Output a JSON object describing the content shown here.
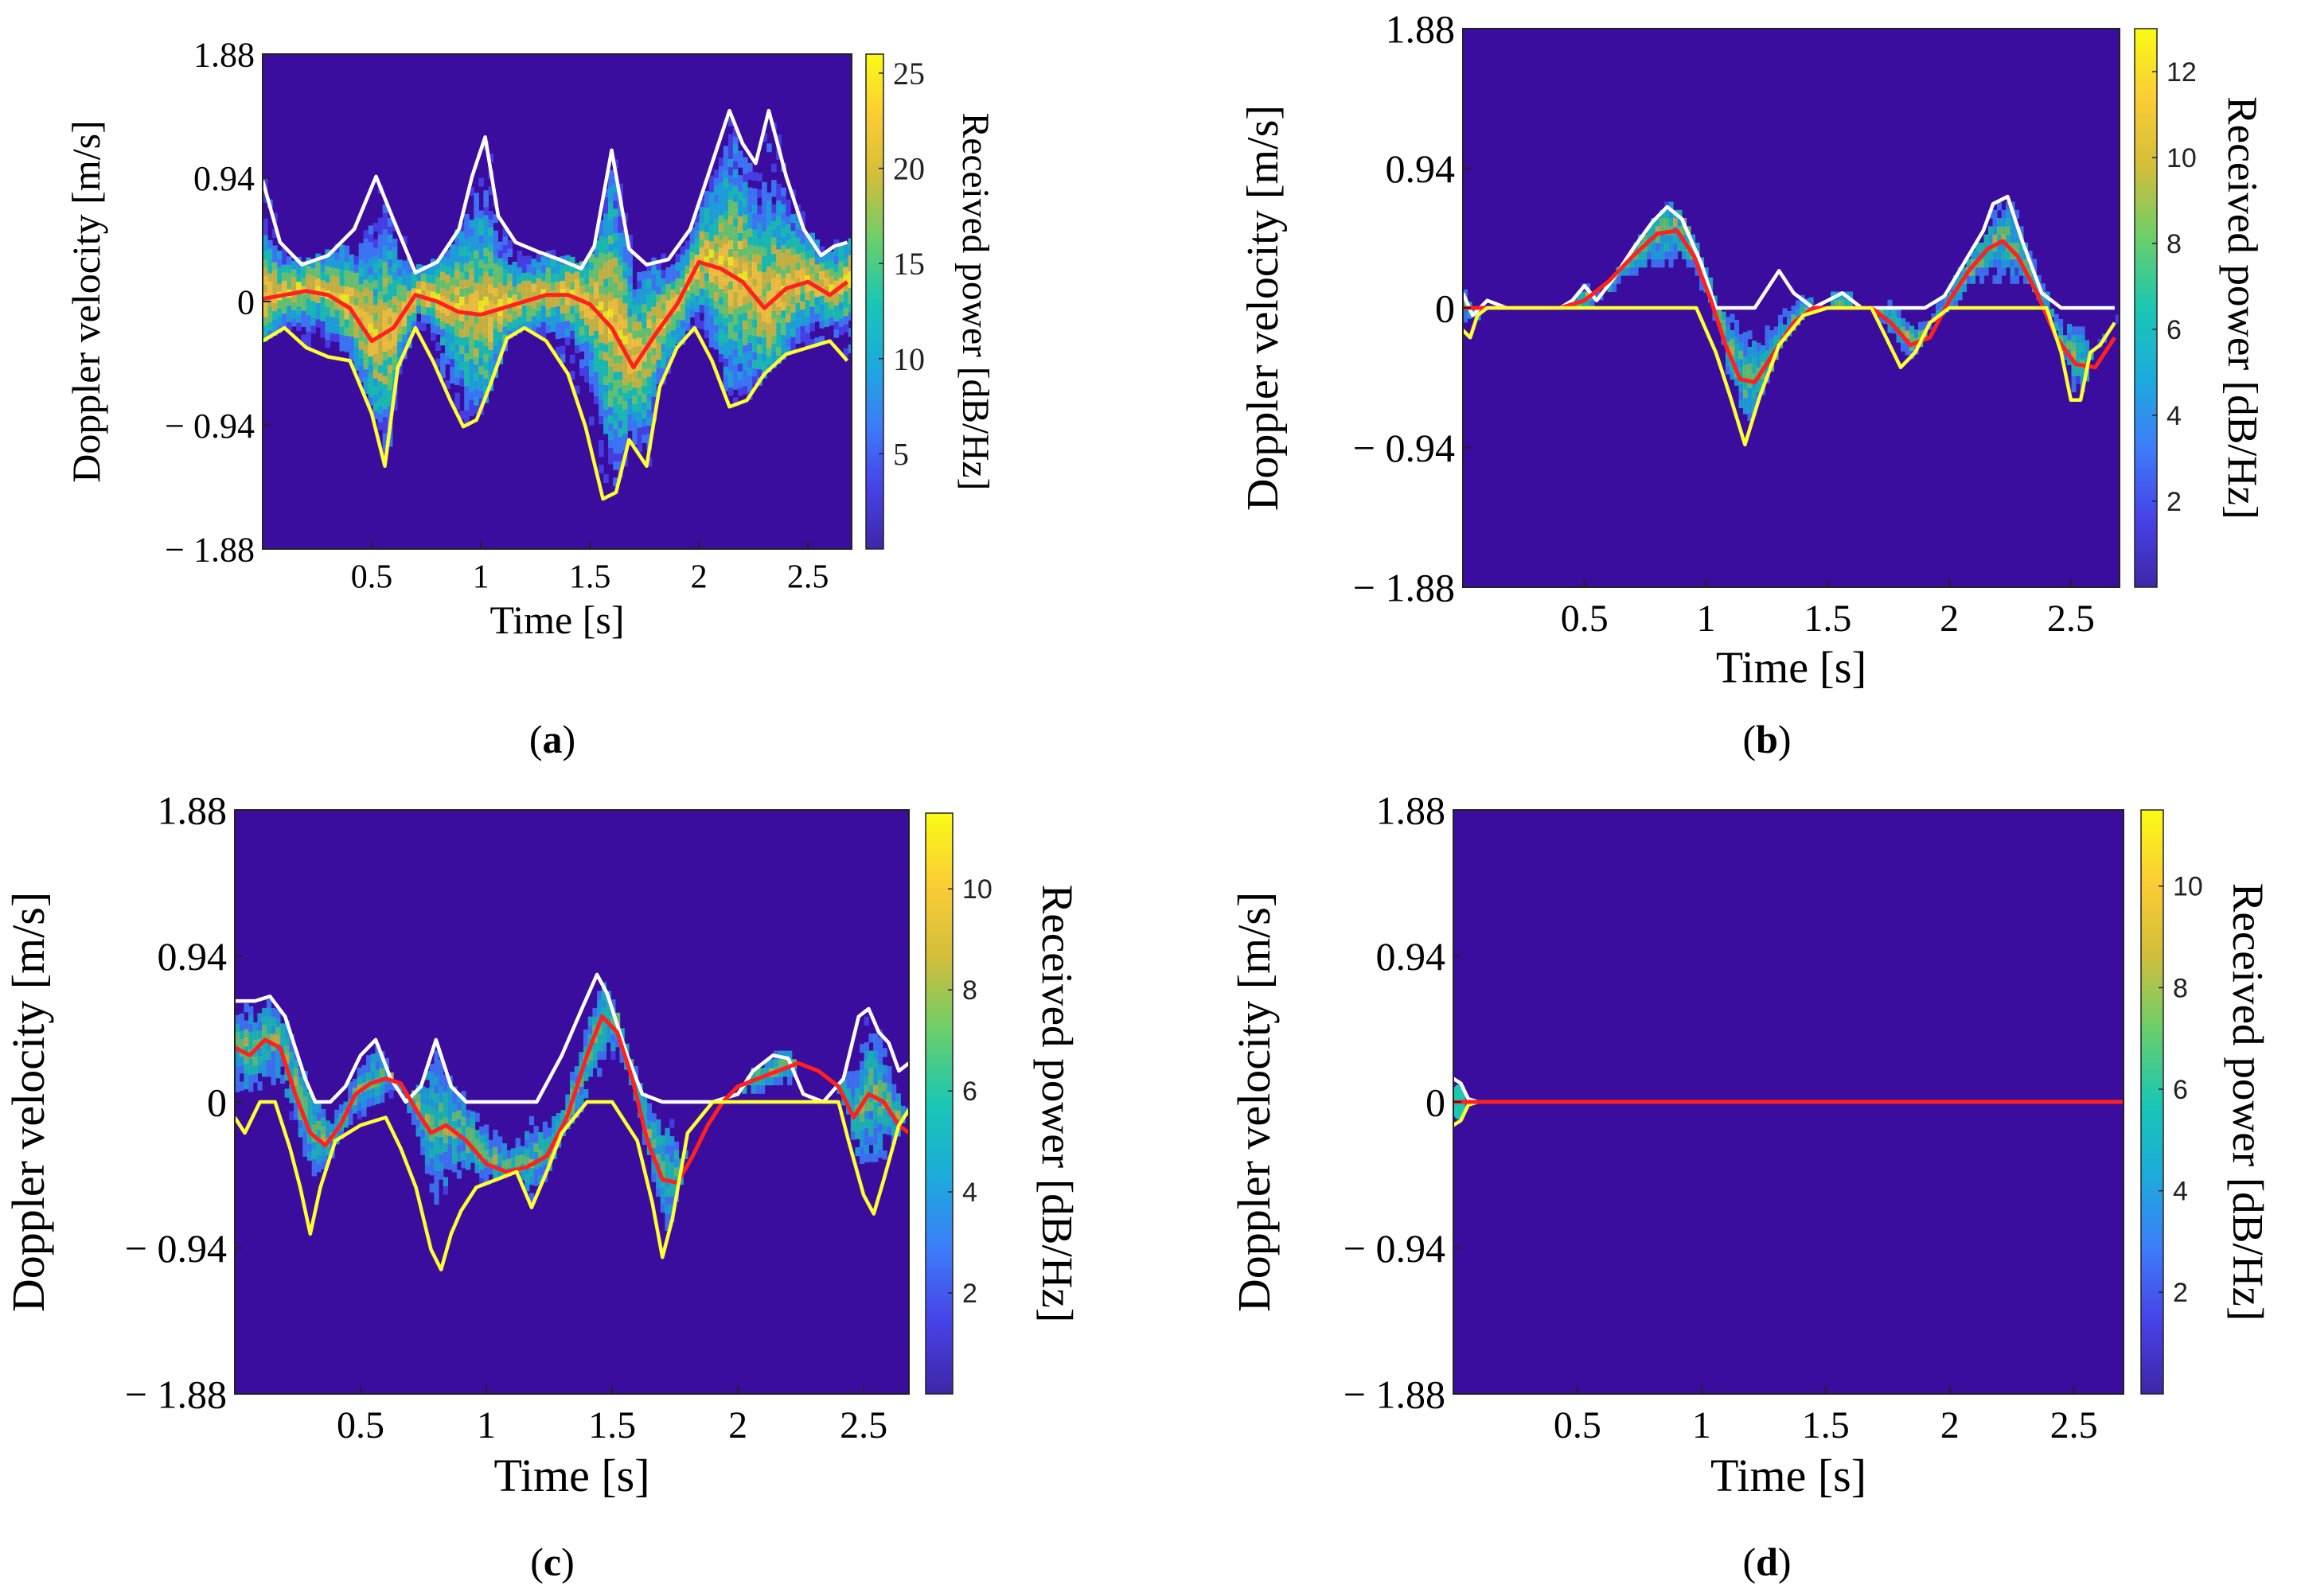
{
  "figure": {
    "panels": [
      "a",
      "b",
      "c",
      "d"
    ]
  },
  "colors": {
    "background": "#3a0d9e",
    "upper_envelope": "#ffffff",
    "lower_envelope": "#ffff33",
    "mean_velocity": "#ff2020",
    "colormap": [
      "#3e26a8",
      "#4743e8",
      "#3d7df9",
      "#1cabdc",
      "#1ac7b3",
      "#6acf6a",
      "#d1be3b",
      "#fbcc35",
      "#f9fb15"
    ]
  },
  "chart_data": [
    {
      "panel": "a",
      "caption": "(a)",
      "type": "heatmap",
      "xlabel": "Time [s]",
      "ylabel": "Doppler velocity [m/s]",
      "colorbar_label": "Received power [dB/Hz]",
      "xlim": [
        0,
        2.7
      ],
      "ylim": [
        -1.88,
        1.88
      ],
      "xticks": [
        0.5,
        1,
        1.5,
        2,
        2.5
      ],
      "xtick_labels": [
        "0.5",
        "1",
        "1.5",
        "2",
        "2.5"
      ],
      "yticks": [
        1.88,
        0.94,
        0,
        -0.94,
        -1.88
      ],
      "ytick_labels": [
        "1.88",
        "0.94",
        "0",
        "− 0.94",
        "− 1.88"
      ],
      "clim": [
        0,
        26
      ],
      "cticks": [
        5,
        10,
        15,
        20,
        25
      ],
      "ctick_labels": [
        "5",
        "10",
        "15",
        "20",
        "25"
      ],
      "spread": "wide",
      "series": [
        {
          "name": "upper envelope",
          "color": "#ffffff",
          "x": [
            0.0,
            0.08,
            0.18,
            0.3,
            0.42,
            0.52,
            0.6,
            0.7,
            0.8,
            0.9,
            0.96,
            1.02,
            1.08,
            1.16,
            1.26,
            1.36,
            1.46,
            1.52,
            1.6,
            1.68,
            1.76,
            1.86,
            1.96,
            2.06,
            2.14,
            2.2,
            2.26,
            2.32,
            2.4,
            2.48,
            2.56,
            2.62,
            2.68
          ],
          "y": [
            0.92,
            0.45,
            0.28,
            0.35,
            0.55,
            0.95,
            0.62,
            0.22,
            0.3,
            0.55,
            0.95,
            1.25,
            0.65,
            0.45,
            0.38,
            0.32,
            0.25,
            0.42,
            1.15,
            0.4,
            0.28,
            0.32,
            0.55,
            1.05,
            1.45,
            1.2,
            1.05,
            1.45,
            0.95,
            0.55,
            0.35,
            0.42,
            0.45
          ]
        },
        {
          "name": "mean velocity",
          "color": "#ff2020",
          "x": [
            0.0,
            0.1,
            0.2,
            0.3,
            0.4,
            0.5,
            0.6,
            0.7,
            0.8,
            0.9,
            1.0,
            1.1,
            1.2,
            1.3,
            1.4,
            1.5,
            1.6,
            1.7,
            1.8,
            1.9,
            2.0,
            2.1,
            2.2,
            2.3,
            2.4,
            2.5,
            2.6,
            2.68
          ],
          "y": [
            0.02,
            0.05,
            0.08,
            0.05,
            -0.05,
            -0.3,
            -0.2,
            0.05,
            0.0,
            -0.08,
            -0.1,
            -0.05,
            0.0,
            0.05,
            0.05,
            -0.02,
            -0.2,
            -0.5,
            -0.25,
            -0.02,
            0.3,
            0.25,
            0.15,
            -0.05,
            0.1,
            0.15,
            0.05,
            0.15
          ]
        },
        {
          "name": "lower envelope",
          "color": "#ffff33",
          "x": [
            0.0,
            0.1,
            0.2,
            0.3,
            0.4,
            0.5,
            0.56,
            0.62,
            0.7,
            0.78,
            0.86,
            0.92,
            0.98,
            1.04,
            1.12,
            1.2,
            1.3,
            1.4,
            1.48,
            1.56,
            1.62,
            1.68,
            1.76,
            1.82,
            1.9,
            1.98,
            2.06,
            2.14,
            2.22,
            2.3,
            2.4,
            2.5,
            2.6,
            2.68
          ],
          "y": [
            -0.3,
            -0.2,
            -0.35,
            -0.42,
            -0.45,
            -0.85,
            -1.25,
            -0.5,
            -0.2,
            -0.45,
            -0.75,
            -0.95,
            -0.9,
            -0.65,
            -0.28,
            -0.2,
            -0.3,
            -0.55,
            -0.95,
            -1.5,
            -1.45,
            -1.05,
            -1.25,
            -0.65,
            -0.35,
            -0.2,
            -0.45,
            -0.8,
            -0.75,
            -0.55,
            -0.4,
            -0.35,
            -0.3,
            -0.45
          ]
        }
      ]
    },
    {
      "panel": "b",
      "caption": "(b)",
      "type": "heatmap",
      "xlabel": "Time [s]",
      "ylabel": "Doppler velocity [m/s]",
      "colorbar_label": "Received power [dB/Hz]",
      "xlim": [
        0,
        2.7
      ],
      "ylim": [
        -1.88,
        1.88
      ],
      "xticks": [
        0.5,
        1,
        1.5,
        2,
        2.5
      ],
      "xtick_labels": [
        "0.5",
        "1",
        "1.5",
        "2",
        "2.5"
      ],
      "yticks": [
        1.88,
        0.94,
        0,
        -0.94,
        -1.88
      ],
      "ytick_labels": [
        "1.88",
        "0.94",
        "0",
        "− 0.94",
        "− 1.88"
      ],
      "clim": [
        0,
        13
      ],
      "cticks": [
        2,
        4,
        6,
        8,
        10,
        12
      ],
      "ctick_labels": [
        "2",
        "4",
        "6",
        "8",
        "10",
        "12"
      ],
      "spread": "narrow",
      "series": [
        {
          "name": "upper envelope",
          "color": "#ffffff",
          "x": [
            0.0,
            0.04,
            0.1,
            0.18,
            0.3,
            0.4,
            0.45,
            0.5,
            0.55,
            0.62,
            0.7,
            0.78,
            0.84,
            0.9,
            0.98,
            1.04,
            1.12,
            1.2,
            1.26,
            1.3,
            1.36,
            1.44,
            1.5,
            1.56,
            1.64,
            1.72,
            1.8,
            1.9,
            1.98,
            2.06,
            2.14,
            2.18,
            2.24,
            2.3,
            2.38,
            2.46,
            2.56,
            2.68
          ],
          "y": [
            0.1,
            -0.05,
            0.05,
            0.0,
            0.0,
            0.0,
            0.05,
            0.15,
            0.05,
            0.2,
            0.4,
            0.58,
            0.68,
            0.6,
            0.3,
            0.0,
            0.0,
            0.0,
            0.15,
            0.25,
            0.1,
            0.0,
            0.05,
            0.1,
            0.0,
            0.0,
            0.0,
            0.0,
            0.08,
            0.3,
            0.52,
            0.7,
            0.75,
            0.45,
            0.1,
            0.0,
            0.0,
            0.0
          ]
        },
        {
          "name": "mean velocity",
          "color": "#ff2020",
          "x": [
            0.0,
            0.1,
            0.2,
            0.3,
            0.4,
            0.5,
            0.6,
            0.7,
            0.8,
            0.88,
            0.95,
            1.02,
            1.08,
            1.14,
            1.2,
            1.28,
            1.36,
            1.44,
            1.52,
            1.6,
            1.68,
            1.76,
            1.84,
            1.92,
            2.0,
            2.08,
            2.16,
            2.22,
            2.28,
            2.36,
            2.44,
            2.52,
            2.6,
            2.68
          ],
          "y": [
            0.0,
            0.0,
            0.0,
            0.0,
            0.0,
            0.05,
            0.18,
            0.35,
            0.5,
            0.52,
            0.35,
            0.05,
            -0.25,
            -0.48,
            -0.5,
            -0.3,
            -0.1,
            0.0,
            0.0,
            0.0,
            0.0,
            -0.1,
            -0.25,
            -0.2,
            0.05,
            0.25,
            0.4,
            0.45,
            0.35,
            0.1,
            -0.2,
            -0.38,
            -0.4,
            -0.2
          ]
        },
        {
          "name": "lower envelope",
          "color": "#ffff33",
          "x": [
            0.0,
            0.03,
            0.06,
            0.1,
            0.2,
            0.4,
            0.6,
            0.8,
            0.96,
            1.04,
            1.1,
            1.16,
            1.22,
            1.3,
            1.4,
            1.5,
            1.6,
            1.68,
            1.74,
            1.8,
            1.86,
            1.92,
            2.0,
            2.2,
            2.4,
            2.46,
            2.5,
            2.54,
            2.58,
            2.62,
            2.68
          ],
          "y": [
            -0.15,
            -0.2,
            -0.05,
            0.0,
            0.0,
            0.0,
            0.0,
            0.0,
            0.0,
            -0.3,
            -0.6,
            -0.92,
            -0.6,
            -0.25,
            -0.05,
            0.0,
            0.0,
            0.0,
            -0.2,
            -0.4,
            -0.3,
            -0.1,
            0.0,
            0.0,
            0.0,
            -0.3,
            -0.62,
            -0.62,
            -0.3,
            -0.25,
            -0.1
          ]
        }
      ]
    },
    {
      "panel": "c",
      "caption": "(c)",
      "type": "heatmap",
      "xlabel": "Time [s]",
      "ylabel": "Doppler velocity [m/s]",
      "colorbar_label": "Received power [dB/Hz]",
      "xlim": [
        0,
        2.68
      ],
      "ylim": [
        -1.88,
        1.88
      ],
      "xticks": [
        0.5,
        1,
        1.5,
        2,
        2.5
      ],
      "xtick_labels": [
        "0.5",
        "1",
        "1.5",
        "2",
        "2.5"
      ],
      "yticks": [
        1.88,
        0.94,
        0,
        -0.94,
        -1.88
      ],
      "ytick_labels": [
        "1.88",
        "0.94",
        "0",
        "− 0.94",
        "− 1.88"
      ],
      "clim": [
        0,
        11.5
      ],
      "cticks": [
        2,
        4,
        6,
        8,
        10
      ],
      "ctick_labels": [
        "2",
        "4",
        "6",
        "8",
        "10"
      ],
      "spread": "narrow",
      "series": [
        {
          "name": "upper envelope",
          "color": "#ffffff",
          "x": [
            0.0,
            0.08,
            0.14,
            0.2,
            0.24,
            0.28,
            0.32,
            0.38,
            0.44,
            0.5,
            0.56,
            0.62,
            0.68,
            0.74,
            0.8,
            0.86,
            0.92,
            1.0,
            1.1,
            1.2,
            1.3,
            1.38,
            1.44,
            1.48,
            1.56,
            1.62,
            1.7,
            1.8,
            1.9,
            2.0,
            2.06,
            2.14,
            2.2,
            2.26,
            2.34,
            2.42,
            2.48,
            2.52,
            2.56,
            2.6,
            2.64,
            2.68
          ],
          "y": [
            0.65,
            0.65,
            0.68,
            0.55,
            0.35,
            0.15,
            0.0,
            0.0,
            0.1,
            0.3,
            0.4,
            0.15,
            0.0,
            0.1,
            0.4,
            0.1,
            0.0,
            0.0,
            0.0,
            0.0,
            0.3,
            0.6,
            0.82,
            0.7,
            0.3,
            0.05,
            0.0,
            0.0,
            0.0,
            0.05,
            0.2,
            0.3,
            0.28,
            0.05,
            0.0,
            0.15,
            0.55,
            0.6,
            0.45,
            0.38,
            0.2,
            0.25
          ]
        },
        {
          "name": "mean velocity",
          "color": "#ff2020",
          "x": [
            0.0,
            0.06,
            0.12,
            0.18,
            0.24,
            0.3,
            0.36,
            0.42,
            0.48,
            0.54,
            0.6,
            0.66,
            0.72,
            0.78,
            0.84,
            0.92,
            1.0,
            1.08,
            1.16,
            1.24,
            1.32,
            1.4,
            1.46,
            1.52,
            1.58,
            1.64,
            1.7,
            1.76,
            1.82,
            1.88,
            1.94,
            2.0,
            2.08,
            2.16,
            2.24,
            2.32,
            2.4,
            2.46,
            2.52,
            2.58,
            2.64,
            2.68
          ],
          "y": [
            0.35,
            0.3,
            0.4,
            0.35,
            0.05,
            -0.2,
            -0.28,
            -0.15,
            0.05,
            0.12,
            0.15,
            0.12,
            -0.05,
            -0.2,
            -0.15,
            -0.25,
            -0.4,
            -0.45,
            -0.42,
            -0.35,
            -0.1,
            0.3,
            0.55,
            0.45,
            0.15,
            -0.25,
            -0.5,
            -0.52,
            -0.35,
            -0.15,
            0.0,
            0.1,
            0.15,
            0.2,
            0.25,
            0.2,
            0.1,
            -0.1,
            0.05,
            0.0,
            -0.15,
            -0.2
          ]
        },
        {
          "name": "lower envelope",
          "color": "#ffff33",
          "x": [
            0.0,
            0.04,
            0.1,
            0.16,
            0.22,
            0.26,
            0.3,
            0.34,
            0.4,
            0.5,
            0.6,
            0.66,
            0.72,
            0.78,
            0.82,
            0.86,
            0.9,
            0.96,
            1.04,
            1.12,
            1.18,
            1.24,
            1.3,
            1.4,
            1.5,
            1.6,
            1.66,
            1.7,
            1.74,
            1.8,
            1.9,
            2.0,
            2.2,
            2.4,
            2.44,
            2.5,
            2.54,
            2.58,
            2.64,
            2.68
          ],
          "y": [
            -0.1,
            -0.2,
            0.0,
            0.0,
            -0.3,
            -0.55,
            -0.85,
            -0.55,
            -0.25,
            -0.15,
            -0.1,
            -0.3,
            -0.55,
            -0.95,
            -1.08,
            -0.85,
            -0.7,
            -0.55,
            -0.5,
            -0.45,
            -0.68,
            -0.45,
            -0.2,
            0.0,
            0.0,
            -0.25,
            -0.65,
            -1.0,
            -0.75,
            -0.2,
            0.0,
            0.0,
            0.0,
            0.0,
            -0.25,
            -0.6,
            -0.72,
            -0.5,
            -0.15,
            -0.05
          ]
        }
      ]
    },
    {
      "panel": "d",
      "caption": "(d)",
      "type": "heatmap",
      "xlabel": "Time [s]",
      "ylabel": "Doppler velocity [m/s]",
      "colorbar_label": "Received power [dB/Hz]",
      "xlim": [
        0,
        2.7
      ],
      "ylim": [
        -1.88,
        1.88
      ],
      "xticks": [
        0.5,
        1,
        1.5,
        2,
        2.5
      ],
      "xtick_labels": [
        "0.5",
        "1",
        "1.5",
        "2",
        "2.5"
      ],
      "yticks": [
        1.88,
        0.94,
        0,
        -0.94,
        -1.88
      ],
      "ytick_labels": [
        "1.88",
        "0.94",
        "0",
        "− 0.94",
        "− 1.88"
      ],
      "clim": [
        0,
        11.5
      ],
      "cticks": [
        2,
        4,
        6,
        8,
        10
      ],
      "ctick_labels": [
        "2",
        "4",
        "6",
        "8",
        "10"
      ],
      "spread": "none",
      "series": [
        {
          "name": "upper envelope",
          "color": "#ffffff",
          "x": [
            0.0,
            0.03,
            0.06,
            0.1,
            2.7
          ],
          "y": [
            0.15,
            0.12,
            0.02,
            0.0,
            0.0
          ]
        },
        {
          "name": "lower envelope",
          "color": "#ffff33",
          "x": [
            0.0,
            0.03,
            0.06,
            0.1,
            2.7
          ],
          "y": [
            -0.15,
            -0.12,
            -0.02,
            0.0,
            0.0
          ]
        },
        {
          "name": "mean velocity",
          "color": "#ff2020",
          "x": [
            0.0,
            2.7
          ],
          "y": [
            0.0,
            0.0
          ]
        }
      ]
    }
  ]
}
